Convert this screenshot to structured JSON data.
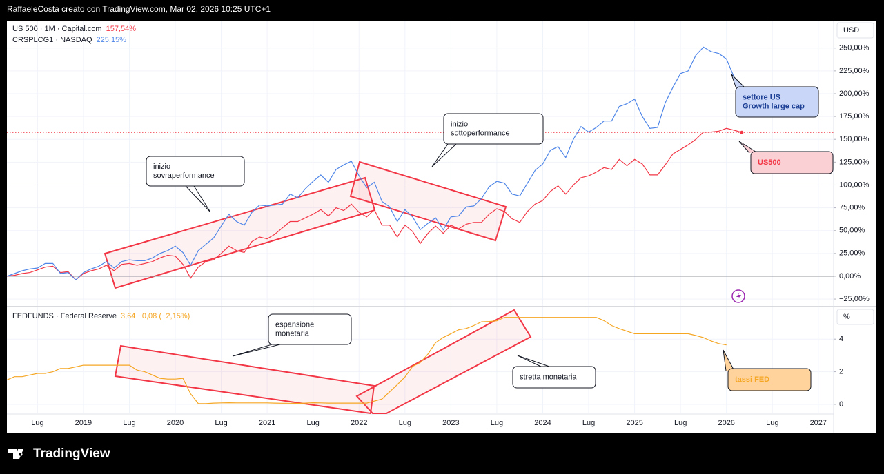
{
  "header": {
    "title": "RaffaeleCosta creato con TradingView.com, Mar 02, 2026 10:25 UTC+1"
  },
  "footer": {
    "logo": "TradingView"
  },
  "chart_data": [
    {
      "type": "line",
      "unit": "USD",
      "x": [
        "2018-03",
        "2018-04",
        "2018-05",
        "2018-06",
        "2018-07",
        "2018-08",
        "2018-09",
        "2018-10",
        "2018-11",
        "2018-12",
        "2019-01",
        "2019-02",
        "2019-03",
        "2019-04",
        "2019-05",
        "2019-06",
        "2019-07",
        "2019-08",
        "2019-09",
        "2019-10",
        "2019-11",
        "2019-12",
        "2020-01",
        "2020-02",
        "2020-03",
        "2020-04",
        "2020-05",
        "2020-06",
        "2020-07",
        "2020-08",
        "2020-09",
        "2020-10",
        "2020-11",
        "2020-12",
        "2021-01",
        "2021-02",
        "2021-03",
        "2021-04",
        "2021-05",
        "2021-06",
        "2021-07",
        "2021-08",
        "2021-09",
        "2021-10",
        "2021-11",
        "2021-12",
        "2022-01",
        "2022-02",
        "2022-03",
        "2022-04",
        "2022-05",
        "2022-06",
        "2022-07",
        "2022-08",
        "2022-09",
        "2022-10",
        "2022-11",
        "2022-12",
        "2023-01",
        "2023-02",
        "2023-03",
        "2023-04",
        "2023-05",
        "2023-06",
        "2023-07",
        "2023-08",
        "2023-09",
        "2023-10",
        "2023-11",
        "2023-12",
        "2024-01",
        "2024-02",
        "2024-03",
        "2024-04",
        "2024-05",
        "2024-06",
        "2024-07",
        "2024-08",
        "2024-09",
        "2024-10",
        "2024-11",
        "2024-12",
        "2025-01",
        "2025-02",
        "2025-03",
        "2025-04",
        "2025-05",
        "2025-06",
        "2025-07",
        "2025-08",
        "2025-09",
        "2025-10",
        "2025-11",
        "2025-12",
        "2026-01",
        "2026-02",
        "2026-03"
      ],
      "xlim": [
        "2018-03",
        "2027-03"
      ],
      "series": [
        {
          "name": "US 500 · 1M · Capital.com",
          "value_label": "157,54%",
          "color": "#f23645",
          "values": [
            0,
            1,
            3,
            4,
            7,
            10,
            11,
            4,
            5,
            -4,
            3,
            6,
            8,
            12,
            6,
            13,
            14,
            12,
            14,
            16,
            20,
            23,
            22,
            13,
            -2,
            10,
            16,
            18,
            25,
            33,
            28,
            26,
            38,
            43,
            41,
            46,
            53,
            60,
            60,
            64,
            68,
            73,
            66,
            75,
            72,
            79,
            70,
            65,
            73,
            56,
            56,
            43,
            56,
            49,
            36,
            47,
            55,
            47,
            56,
            52,
            57,
            59,
            59,
            68,
            74,
            71,
            63,
            59,
            71,
            79,
            83,
            93,
            99,
            90,
            100,
            108,
            110,
            114,
            119,
            117,
            128,
            121,
            128,
            123,
            111,
            111,
            122,
            134,
            139,
            144,
            150,
            158,
            158,
            159,
            162,
            160,
            157.54
          ]
        },
        {
          "name": "CRSPLCG1 · NASDAQ",
          "value_label": "225,15%",
          "color": "#4f86e8",
          "values": [
            0,
            3,
            6,
            8,
            9,
            14,
            14,
            3,
            4,
            -4,
            4,
            8,
            11,
            16,
            9,
            16,
            18,
            17,
            17,
            20,
            25,
            28,
            33,
            26,
            12,
            28,
            35,
            42,
            55,
            68,
            60,
            56,
            70,
            78,
            77,
            78,
            79,
            90,
            86,
            96,
            104,
            111,
            103,
            117,
            122,
            126,
            110,
            97,
            103,
            82,
            76,
            60,
            73,
            65,
            51,
            58,
            64,
            51,
            65,
            66,
            76,
            77,
            85,
            98,
            104,
            102,
            90,
            88,
            102,
            116,
            123,
            138,
            142,
            130,
            150,
            164,
            158,
            163,
            170,
            170,
            186,
            189,
            194,
            175,
            162,
            163,
            190,
            207,
            222,
            225,
            242,
            251,
            246,
            244,
            238,
            218,
            null
          ]
        }
      ],
      "ylim": [
        -32.5,
        280
      ],
      "yticks": [
        {
          "value": -25,
          "label": "−25,00%"
        },
        {
          "value": 0,
          "label": "0,00%"
        },
        {
          "value": 25,
          "label": "25,00%"
        },
        {
          "value": 50,
          "label": "50,00%"
        },
        {
          "value": 75,
          "label": "75,00%"
        },
        {
          "value": 100,
          "label": "100,00%"
        },
        {
          "value": 125,
          "label": "125,00%"
        },
        {
          "value": 150,
          "label": "150,00%"
        },
        {
          "value": 175,
          "label": "175,00%"
        },
        {
          "value": 200,
          "label": "200,00%"
        },
        {
          "value": 225,
          "label": "225,00%"
        },
        {
          "value": 250,
          "label": "250,00%"
        }
      ],
      "grid": true,
      "annotations": [
        {
          "lines": [
            "inizio",
            "sovraperformance"
          ]
        },
        {
          "lines": [
            "inizio",
            "sottoperformance"
          ]
        },
        {
          "lines": [
            "settore US",
            "Growth large cap"
          ],
          "color": "#1c3f95"
        },
        {
          "lines": [
            "US500"
          ],
          "color": "#f23645"
        }
      ]
    },
    {
      "type": "line",
      "unit": "%",
      "x": [
        "2018-03",
        "2018-04",
        "2018-05",
        "2018-06",
        "2018-07",
        "2018-08",
        "2018-09",
        "2018-10",
        "2018-11",
        "2018-12",
        "2019-01",
        "2019-02",
        "2019-03",
        "2019-04",
        "2019-05",
        "2019-06",
        "2019-07",
        "2019-08",
        "2019-09",
        "2019-10",
        "2019-11",
        "2019-12",
        "2020-01",
        "2020-02",
        "2020-03",
        "2020-04",
        "2020-05",
        "2020-06",
        "2020-07",
        "2020-08",
        "2020-09",
        "2020-10",
        "2020-11",
        "2020-12",
        "2021-01",
        "2021-02",
        "2021-03",
        "2021-04",
        "2021-05",
        "2021-06",
        "2021-07",
        "2021-08",
        "2021-09",
        "2021-10",
        "2021-11",
        "2021-12",
        "2022-01",
        "2022-02",
        "2022-03",
        "2022-04",
        "2022-05",
        "2022-06",
        "2022-07",
        "2022-08",
        "2022-09",
        "2022-10",
        "2022-11",
        "2022-12",
        "2023-01",
        "2023-02",
        "2023-03",
        "2023-04",
        "2023-05",
        "2023-06",
        "2023-07",
        "2023-08",
        "2023-09",
        "2023-10",
        "2023-11",
        "2023-12",
        "2024-01",
        "2024-02",
        "2024-03",
        "2024-04",
        "2024-05",
        "2024-06",
        "2024-07",
        "2024-08",
        "2024-09",
        "2024-10",
        "2024-11",
        "2024-12",
        "2025-01",
        "2025-02",
        "2025-03",
        "2025-04",
        "2025-05",
        "2025-06",
        "2025-07",
        "2025-08",
        "2025-09",
        "2025-10",
        "2025-11",
        "2025-12",
        "2026-01",
        "2026-02",
        "2026-03"
      ],
      "xlim": [
        "2018-03",
        "2027-03"
      ],
      "xticks": [
        {
          "value": "2018-07",
          "label": "Lug"
        },
        {
          "value": "2019-01",
          "label": "2019"
        },
        {
          "value": "2019-07",
          "label": "Lug"
        },
        {
          "value": "2020-01",
          "label": "2020"
        },
        {
          "value": "2020-07",
          "label": "Lug"
        },
        {
          "value": "2021-01",
          "label": "2021"
        },
        {
          "value": "2021-07",
          "label": "Lug"
        },
        {
          "value": "2022-01",
          "label": "2022"
        },
        {
          "value": "2022-07",
          "label": "Lug"
        },
        {
          "value": "2023-01",
          "label": "2023"
        },
        {
          "value": "2023-07",
          "label": "Lug"
        },
        {
          "value": "2024-01",
          "label": "2024"
        },
        {
          "value": "2024-07",
          "label": "Lug"
        },
        {
          "value": "2025-01",
          "label": "2025"
        },
        {
          "value": "2025-07",
          "label": "Lug"
        },
        {
          "value": "2026-01",
          "label": "2026"
        },
        {
          "value": "2026-07",
          "label": "Lug"
        },
        {
          "value": "2027-01",
          "label": "2027"
        }
      ],
      "series": [
        {
          "name": "FEDFUNDS · Federal Reserve",
          "value_label": "3,64 −0,08 (−2,15%)",
          "color": "#f5a623",
          "values": [
            1.5,
            1.7,
            1.7,
            1.8,
            1.9,
            1.9,
            2.0,
            2.2,
            2.2,
            2.3,
            2.4,
            2.4,
            2.4,
            2.4,
            2.4,
            2.4,
            2.4,
            2.1,
            2.0,
            1.8,
            1.6,
            1.55,
            1.55,
            1.6,
            0.65,
            0.05,
            0.05,
            0.08,
            0.09,
            0.1,
            0.09,
            0.09,
            0.09,
            0.09,
            0.09,
            0.08,
            0.07,
            0.07,
            0.06,
            0.08,
            0.1,
            0.09,
            0.08,
            0.08,
            0.08,
            0.08,
            0.08,
            0.08,
            0.2,
            0.33,
            0.77,
            1.21,
            1.68,
            2.33,
            2.56,
            3.08,
            3.78,
            4.1,
            4.33,
            4.57,
            4.65,
            4.83,
            5.06,
            5.08,
            5.12,
            5.33,
            5.33,
            5.33,
            5.33,
            5.33,
            5.33,
            5.33,
            5.33,
            5.33,
            5.33,
            5.33,
            5.33,
            5.33,
            5.13,
            4.83,
            4.64,
            4.48,
            4.33,
            4.33,
            4.33,
            4.33,
            4.33,
            4.33,
            4.33,
            4.33,
            4.22,
            4.09,
            3.88,
            3.72,
            3.64,
            null,
            null
          ]
        }
      ],
      "ylim": [
        -0.55,
        5.95
      ],
      "yticks": [
        0,
        2,
        4
      ],
      "grid": true,
      "annotations": [
        {
          "lines": [
            "espansione",
            "monetaria"
          ]
        },
        {
          "lines": [
            "stretta monetaria"
          ]
        },
        {
          "lines": [
            "tassi FED"
          ],
          "color": "#f5a623"
        }
      ]
    }
  ]
}
